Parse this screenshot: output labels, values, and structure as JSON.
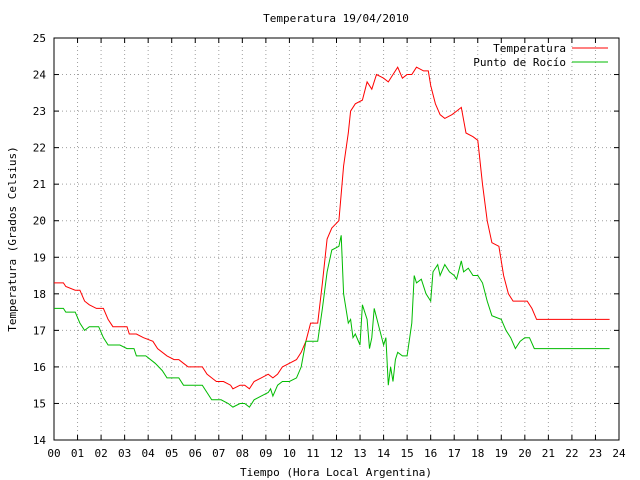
{
  "chart_data": {
    "type": "line",
    "title": "Temperatura 19/04/2010",
    "xlabel": "Tiempo (Hora Local Argentina)",
    "ylabel": "Temperatura (Grados Celsius)",
    "xlim": [
      0,
      24
    ],
    "ylim": [
      14,
      25
    ],
    "grid": true,
    "legend_position": "top-right",
    "x_ticks": [
      "00",
      "01",
      "02",
      "03",
      "04",
      "05",
      "06",
      "07",
      "08",
      "09",
      "10",
      "11",
      "12",
      "13",
      "14",
      "15",
      "16",
      "17",
      "18",
      "19",
      "20",
      "21",
      "22",
      "23",
      "24"
    ],
    "y_ticks": [
      "14",
      "15",
      "16",
      "17",
      "18",
      "19",
      "20",
      "21",
      "22",
      "23",
      "24",
      "25"
    ],
    "series": [
      {
        "name": "Temperatura",
        "color": "#ff0000",
        "points": [
          [
            0,
            18.3
          ],
          [
            0.4,
            18.3
          ],
          [
            0.5,
            18.2
          ],
          [
            0.9,
            18.1
          ],
          [
            1.1,
            18.1
          ],
          [
            1.3,
            17.8
          ],
          [
            1.5,
            17.7
          ],
          [
            1.8,
            17.6
          ],
          [
            2.1,
            17.6
          ],
          [
            2.3,
            17.3
          ],
          [
            2.5,
            17.1
          ],
          [
            2.8,
            17.1
          ],
          [
            3.1,
            17.1
          ],
          [
            3.2,
            16.9
          ],
          [
            3.5,
            16.9
          ],
          [
            3.8,
            16.8
          ],
          [
            4.2,
            16.7
          ],
          [
            4.4,
            16.5
          ],
          [
            4.8,
            16.3
          ],
          [
            5.1,
            16.2
          ],
          [
            5.3,
            16.2
          ],
          [
            5.5,
            16.1
          ],
          [
            5.7,
            16.0
          ],
          [
            6.0,
            16.0
          ],
          [
            6.3,
            16.0
          ],
          [
            6.5,
            15.8
          ],
          [
            6.7,
            15.7
          ],
          [
            6.9,
            15.6
          ],
          [
            7.2,
            15.6
          ],
          [
            7.5,
            15.5
          ],
          [
            7.6,
            15.4
          ],
          [
            7.9,
            15.5
          ],
          [
            8.1,
            15.5
          ],
          [
            8.3,
            15.4
          ],
          [
            8.5,
            15.6
          ],
          [
            8.8,
            15.7
          ],
          [
            9.1,
            15.8
          ],
          [
            9.3,
            15.7
          ],
          [
            9.5,
            15.8
          ],
          [
            9.7,
            16.0
          ],
          [
            10.0,
            16.1
          ],
          [
            10.3,
            16.2
          ],
          [
            10.5,
            16.4
          ],
          [
            10.7,
            16.7
          ],
          [
            10.9,
            17.2
          ],
          [
            11.2,
            17.2
          ],
          [
            11.4,
            18.3
          ],
          [
            11.6,
            19.5
          ],
          [
            11.8,
            19.8
          ],
          [
            12.1,
            20.0
          ],
          [
            12.3,
            21.5
          ],
          [
            12.5,
            22.4
          ],
          [
            12.6,
            23.0
          ],
          [
            12.8,
            23.2
          ],
          [
            13.1,
            23.3
          ],
          [
            13.3,
            23.8
          ],
          [
            13.5,
            23.6
          ],
          [
            13.7,
            24.0
          ],
          [
            14.0,
            23.9
          ],
          [
            14.2,
            23.8
          ],
          [
            14.4,
            24.0
          ],
          [
            14.6,
            24.2
          ],
          [
            14.8,
            23.9
          ],
          [
            15.0,
            24.0
          ],
          [
            15.2,
            24.0
          ],
          [
            15.4,
            24.2
          ],
          [
            15.7,
            24.1
          ],
          [
            15.9,
            24.1
          ],
          [
            16.0,
            23.7
          ],
          [
            16.2,
            23.2
          ],
          [
            16.4,
            22.9
          ],
          [
            16.6,
            22.8
          ],
          [
            16.9,
            22.9
          ],
          [
            17.1,
            23.0
          ],
          [
            17.3,
            23.1
          ],
          [
            17.5,
            22.4
          ],
          [
            17.8,
            22.3
          ],
          [
            18.0,
            22.2
          ],
          [
            18.2,
            21.0
          ],
          [
            18.4,
            20.0
          ],
          [
            18.6,
            19.4
          ],
          [
            18.9,
            19.3
          ],
          [
            19.1,
            18.5
          ],
          [
            19.3,
            18.0
          ],
          [
            19.5,
            17.8
          ],
          [
            19.8,
            17.8
          ],
          [
            20.1,
            17.8
          ],
          [
            20.3,
            17.6
          ],
          [
            20.5,
            17.3
          ],
          [
            21.0,
            17.3
          ],
          [
            22.0,
            17.3
          ],
          [
            23.0,
            17.3
          ],
          [
            23.6,
            17.3
          ]
        ]
      },
      {
        "name": "Punto de Rocío",
        "color": "#00bb00",
        "points": [
          [
            0,
            17.6
          ],
          [
            0.4,
            17.6
          ],
          [
            0.5,
            17.5
          ],
          [
            0.9,
            17.5
          ],
          [
            1.1,
            17.2
          ],
          [
            1.3,
            17.0
          ],
          [
            1.5,
            17.1
          ],
          [
            1.9,
            17.1
          ],
          [
            2.1,
            16.8
          ],
          [
            2.3,
            16.6
          ],
          [
            2.8,
            16.6
          ],
          [
            3.1,
            16.5
          ],
          [
            3.4,
            16.5
          ],
          [
            3.5,
            16.3
          ],
          [
            3.9,
            16.3
          ],
          [
            4.3,
            16.1
          ],
          [
            4.6,
            15.9
          ],
          [
            4.8,
            15.7
          ],
          [
            5.3,
            15.7
          ],
          [
            5.5,
            15.5
          ],
          [
            6.0,
            15.5
          ],
          [
            6.3,
            15.5
          ],
          [
            6.5,
            15.3
          ],
          [
            6.7,
            15.1
          ],
          [
            7.1,
            15.1
          ],
          [
            7.4,
            15.0
          ],
          [
            7.6,
            14.9
          ],
          [
            7.9,
            15.0
          ],
          [
            8.1,
            15.0
          ],
          [
            8.3,
            14.9
          ],
          [
            8.5,
            15.1
          ],
          [
            8.8,
            15.2
          ],
          [
            9.1,
            15.3
          ],
          [
            9.2,
            15.4
          ],
          [
            9.3,
            15.2
          ],
          [
            9.5,
            15.5
          ],
          [
            9.7,
            15.6
          ],
          [
            10.0,
            15.6
          ],
          [
            10.3,
            15.7
          ],
          [
            10.5,
            16.0
          ],
          [
            10.7,
            16.7
          ],
          [
            11.2,
            16.7
          ],
          [
            11.4,
            17.6
          ],
          [
            11.6,
            18.6
          ],
          [
            11.8,
            19.2
          ],
          [
            12.1,
            19.3
          ],
          [
            12.2,
            19.6
          ],
          [
            12.3,
            18.0
          ],
          [
            12.5,
            17.2
          ],
          [
            12.6,
            17.3
          ],
          [
            12.7,
            16.8
          ],
          [
            12.8,
            16.9
          ],
          [
            13.0,
            16.6
          ],
          [
            13.1,
            17.7
          ],
          [
            13.3,
            17.3
          ],
          [
            13.4,
            16.5
          ],
          [
            13.5,
            16.8
          ],
          [
            13.6,
            17.6
          ],
          [
            13.8,
            17.1
          ],
          [
            14.0,
            16.6
          ],
          [
            14.1,
            16.8
          ],
          [
            14.2,
            15.5
          ],
          [
            14.3,
            16.0
          ],
          [
            14.4,
            15.6
          ],
          [
            14.5,
            16.2
          ],
          [
            14.6,
            16.4
          ],
          [
            14.8,
            16.3
          ],
          [
            15.0,
            16.3
          ],
          [
            15.2,
            17.2
          ],
          [
            15.3,
            18.5
          ],
          [
            15.4,
            18.3
          ],
          [
            15.6,
            18.4
          ],
          [
            15.8,
            18.0
          ],
          [
            16.0,
            17.8
          ],
          [
            16.1,
            18.6
          ],
          [
            16.3,
            18.8
          ],
          [
            16.4,
            18.5
          ],
          [
            16.6,
            18.8
          ],
          [
            16.8,
            18.6
          ],
          [
            17.0,
            18.5
          ],
          [
            17.1,
            18.4
          ],
          [
            17.3,
            18.9
          ],
          [
            17.4,
            18.6
          ],
          [
            17.6,
            18.7
          ],
          [
            17.8,
            18.5
          ],
          [
            18.0,
            18.5
          ],
          [
            18.2,
            18.3
          ],
          [
            18.4,
            17.8
          ],
          [
            18.6,
            17.4
          ],
          [
            19.0,
            17.3
          ],
          [
            19.2,
            17.0
          ],
          [
            19.4,
            16.8
          ],
          [
            19.6,
            16.5
          ],
          [
            19.8,
            16.7
          ],
          [
            20.0,
            16.8
          ],
          [
            20.2,
            16.8
          ],
          [
            20.4,
            16.5
          ],
          [
            21.0,
            16.5
          ],
          [
            22.0,
            16.5
          ],
          [
            23.0,
            16.5
          ],
          [
            23.6,
            16.5
          ]
        ]
      }
    ]
  }
}
